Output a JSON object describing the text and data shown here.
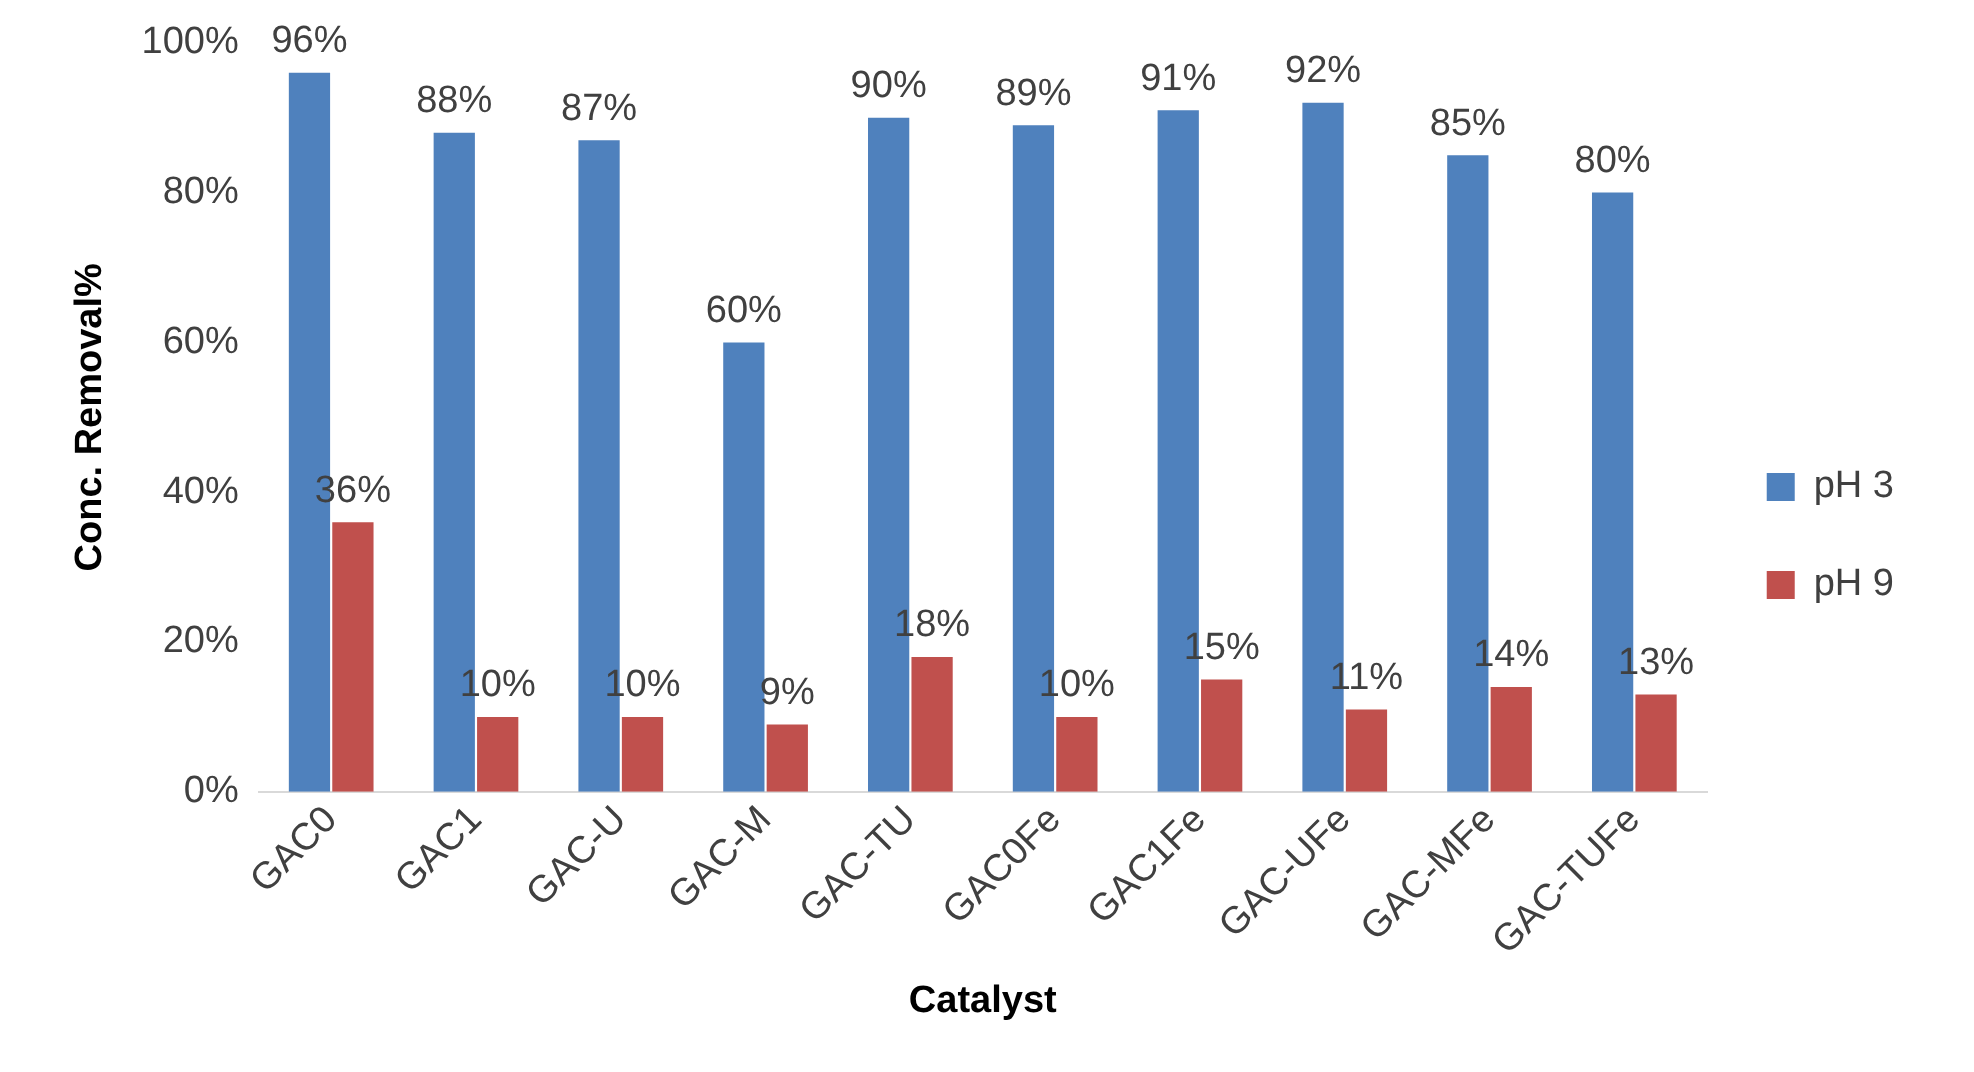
{
  "chart_data": {
    "type": "bar",
    "xlabel": "Catalyst",
    "ylabel": "Conc. Removal%",
    "categories": [
      "GAC0",
      "GAC1",
      "GAC-U",
      "GAC-M",
      "GAC-TU",
      "GAC0Fe",
      "GAC1Fe",
      "GAC-UFe",
      "GAC-MFe",
      "GAC-TUFe"
    ],
    "series": [
      {
        "name": "pH 3",
        "color": "#4f81bd",
        "values": [
          96,
          88,
          87,
          60,
          90,
          89,
          91,
          92,
          85,
          80
        ],
        "value_labels": [
          "96%",
          "88%",
          "87%",
          "60%",
          "90%",
          "89%",
          "91%",
          "92%",
          "85%",
          "80%"
        ]
      },
      {
        "name": "pH 9",
        "color": "#c0504d",
        "values": [
          36,
          10,
          10,
          9,
          18,
          10,
          15,
          11,
          14,
          13
        ],
        "value_labels": [
          "36%",
          "10%",
          "10%",
          "9%",
          "18%",
          "10%",
          "15%",
          "11%",
          "14%",
          "13%"
        ]
      }
    ],
    "ylim": [
      0,
      100
    ],
    "yticks": [
      {
        "value": 0,
        "label": "0%"
      },
      {
        "value": 20,
        "label": "20%"
      },
      {
        "value": 40,
        "label": "40%"
      },
      {
        "value": 60,
        "label": "60%"
      },
      {
        "value": 80,
        "label": "80%"
      },
      {
        "value": 100,
        "label": "100%"
      }
    ],
    "grid": false,
    "legend": "right"
  }
}
